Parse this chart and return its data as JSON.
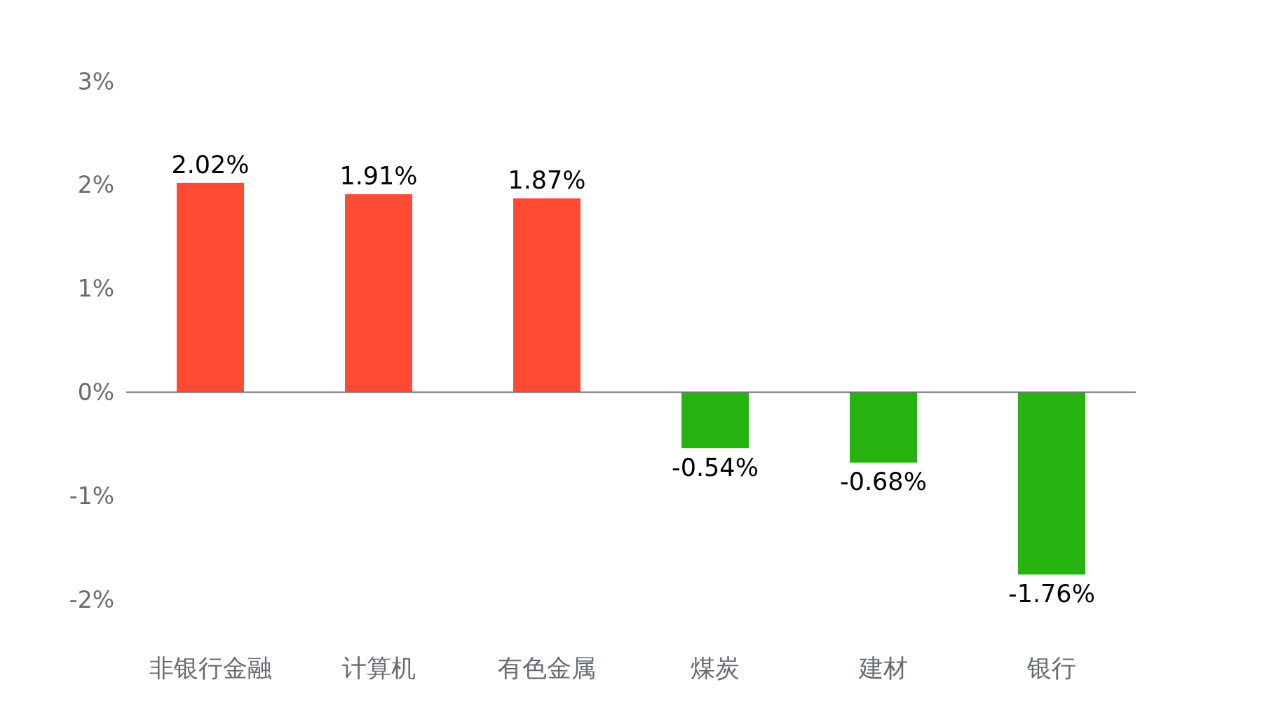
{
  "chart_data": {
    "type": "bar",
    "categories": [
      "非银行金融",
      "计算机",
      "有色金属",
      "煤炭",
      "建材",
      "银行"
    ],
    "values": [
      2.02,
      1.91,
      1.87,
      -0.54,
      -0.68,
      -1.76
    ],
    "colors": [
      "#ff4b33",
      "#ff4b33",
      "#ff4b33",
      "#27b30f",
      "#27b30f",
      "#27b30f"
    ],
    "value_labels": [
      "2.02%",
      "1.91%",
      "1.87%",
      "-0.54%",
      "-0.68%",
      "-1.76%"
    ],
    "ylim": [
      -2,
      3
    ],
    "yticks": [
      {
        "value": -2,
        "label": "-2%"
      },
      {
        "value": -1,
        "label": "-1%"
      },
      {
        "value": 0,
        "label": "0%"
      },
      {
        "value": 1,
        "label": "1%"
      },
      {
        "value": 2,
        "label": "2%"
      },
      {
        "value": 3,
        "label": "3%"
      }
    ]
  }
}
